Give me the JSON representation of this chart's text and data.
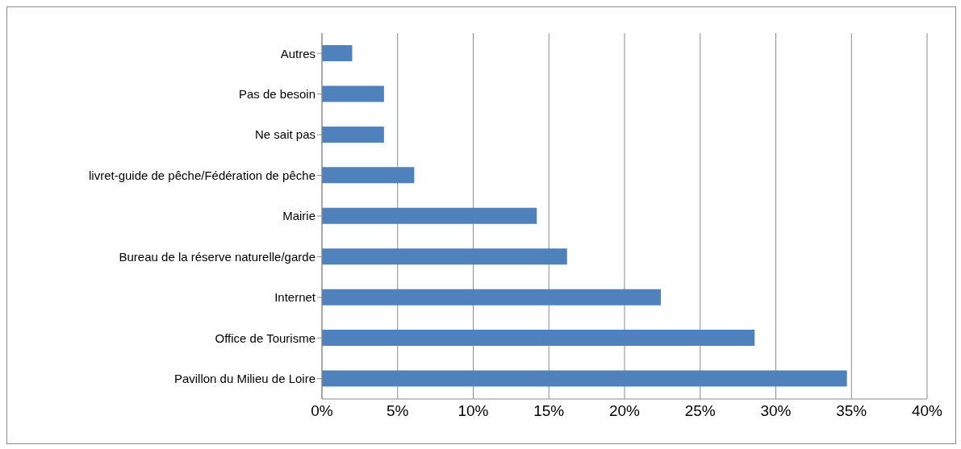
{
  "chart_data": {
    "type": "bar",
    "orientation": "horizontal",
    "categories": [
      "Autres",
      "Pas de besoin",
      "Ne sait pas",
      "livret-guide de pêche/Fédération de pêche",
      "Mairie",
      "Bureau de la réserve naturelle/garde",
      "Internet",
      "Office de Tourisme",
      "Pavillon du Milieu de Loire"
    ],
    "values": [
      2,
      4.1,
      4.1,
      6.1,
      14.2,
      16.2,
      22.4,
      28.6,
      34.7
    ],
    "color": "#4f81bd",
    "xlim": [
      0,
      40
    ],
    "xticks": [
      {
        "value": 0,
        "label": "0%"
      },
      {
        "value": 5,
        "label": "5%"
      },
      {
        "value": 10,
        "label": "10%"
      },
      {
        "value": 15,
        "label": "15%"
      },
      {
        "value": 20,
        "label": "20%"
      },
      {
        "value": 25,
        "label": "25%"
      },
      {
        "value": 30,
        "label": "30%"
      },
      {
        "value": 35,
        "label": "35%"
      },
      {
        "value": 40,
        "label": "40%"
      }
    ],
    "grid": "x",
    "legend": false
  }
}
